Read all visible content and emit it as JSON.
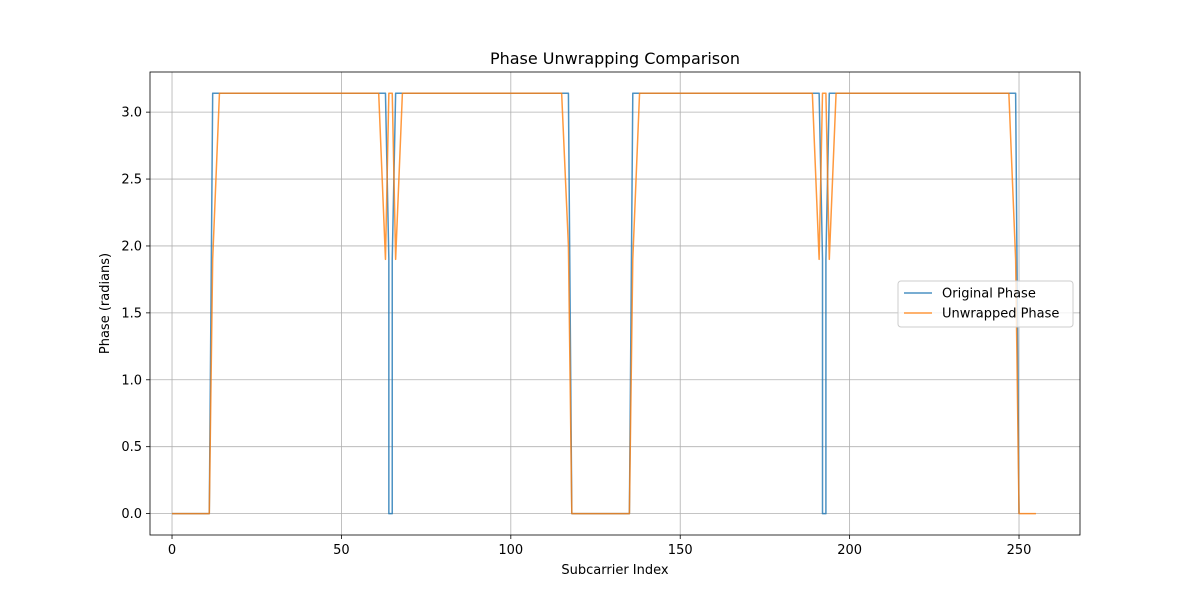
{
  "chart_data": {
    "type": "line",
    "title": "Phase Unwrapping Comparison",
    "xlabel": "Subcarrier Index",
    "ylabel": "Phase (radians)",
    "xlim": [
      -6.5,
      268
    ],
    "ylim": [
      -0.16,
      3.3
    ],
    "x_ticks": [
      0,
      50,
      100,
      150,
      200,
      250
    ],
    "x_tick_labels": [
      "0",
      "50",
      "100",
      "150",
      "200",
      "250"
    ],
    "y_ticks": [
      0.0,
      0.5,
      1.0,
      1.5,
      2.0,
      2.5,
      3.0
    ],
    "y_tick_labels": [
      "0.0",
      "0.5",
      "1.0",
      "1.5",
      "2.0",
      "2.5",
      "3.0"
    ],
    "grid": true,
    "legend_position": "center-right",
    "series": [
      {
        "name": "Original Phase",
        "color": "#1f77b4",
        "points": [
          [
            0,
            0.0
          ],
          [
            11,
            0.0
          ],
          [
            12,
            3.14159
          ],
          [
            63,
            3.14159
          ],
          [
            64,
            1.9
          ],
          [
            64,
            0.0
          ],
          [
            65,
            0.0
          ],
          [
            65,
            1.9
          ],
          [
            66,
            3.14159
          ],
          [
            117,
            3.14159
          ],
          [
            118,
            0.0
          ],
          [
            135,
            0.0
          ],
          [
            136,
            3.14159
          ],
          [
            191,
            3.14159
          ],
          [
            192,
            1.9
          ],
          [
            192,
            0.0
          ],
          [
            193,
            0.0
          ],
          [
            193,
            1.9
          ],
          [
            194,
            3.14159
          ],
          [
            249,
            3.14159
          ],
          [
            250,
            0.0
          ]
        ]
      },
      {
        "name": "Unwrapped Phase",
        "color": "#ff7f0e",
        "points": [
          [
            0,
            0.0
          ],
          [
            11,
            0.0
          ],
          [
            12,
            1.9
          ],
          [
            14,
            3.14159
          ],
          [
            61,
            3.14159
          ],
          [
            63,
            1.9
          ],
          [
            64,
            3.14159
          ],
          [
            65,
            3.14159
          ],
          [
            66,
            1.9
          ],
          [
            68,
            3.14159
          ],
          [
            115,
            3.14159
          ],
          [
            117,
            2.0
          ],
          [
            118,
            0.0
          ],
          [
            135,
            0.0
          ],
          [
            136,
            1.9
          ],
          [
            138,
            3.14159
          ],
          [
            189,
            3.14159
          ],
          [
            191,
            1.9
          ],
          [
            192,
            3.14159
          ],
          [
            193,
            3.14159
          ],
          [
            194,
            1.9
          ],
          [
            196,
            3.14159
          ],
          [
            247,
            3.14159
          ],
          [
            249,
            1.9
          ],
          [
            250,
            0.0
          ],
          [
            255,
            0.0
          ]
        ]
      }
    ]
  }
}
